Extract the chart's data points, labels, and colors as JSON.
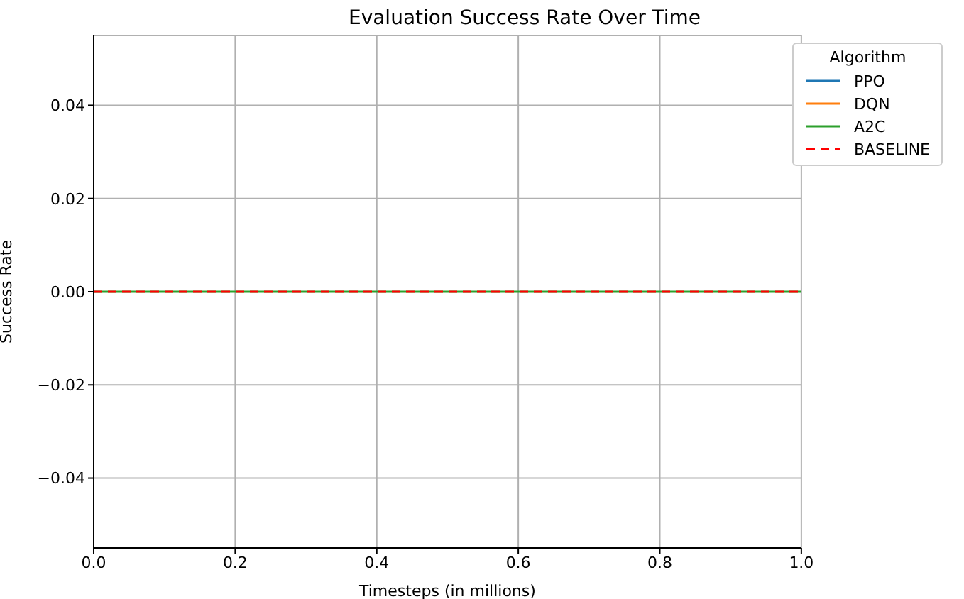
{
  "chart_data": {
    "type": "line",
    "title": "Evaluation Success Rate Over Time",
    "xlabel": "Timesteps (in millions)",
    "ylabel": "Success Rate",
    "legend_title": "Algorithm",
    "x": [
      0,
      1
    ],
    "series": [
      {
        "name": "PPO",
        "color": "#1f77b4",
        "values": [
          null,
          null
        ]
      },
      {
        "name": "DQN",
        "color": "#ff7f0e",
        "values": [
          null,
          null
        ]
      },
      {
        "name": "A2C",
        "color": "#2ca02c",
        "values": [
          0,
          0
        ]
      },
      {
        "name": "BASELINE",
        "color": "#ff0000",
        "values": [
          0,
          0
        ],
        "line_style": "dashed"
      }
    ],
    "xlim": [
      0,
      1
    ],
    "xticks": [
      {
        "value": 0,
        "label": "0.0"
      },
      {
        "value": 0.2,
        "label": "0.2"
      },
      {
        "value": 0.4,
        "label": "0.4"
      },
      {
        "value": 0.6,
        "label": "0.6"
      },
      {
        "value": 0.8,
        "label": "0.8"
      },
      {
        "value": 1,
        "label": "1.0"
      }
    ],
    "ylim": [
      -0.055,
      0.055
    ],
    "yticks": [
      {
        "value": -0.04,
        "label": "−0.04"
      },
      {
        "value": -0.02,
        "label": "−0.02"
      },
      {
        "value": 0,
        "label": "0.00"
      },
      {
        "value": 0.02,
        "label": "0.02"
      },
      {
        "value": 0.04,
        "label": "0.04"
      }
    ],
    "grid": true,
    "legend": "top right",
    "marker": "none",
    "line_style": "solid"
  }
}
